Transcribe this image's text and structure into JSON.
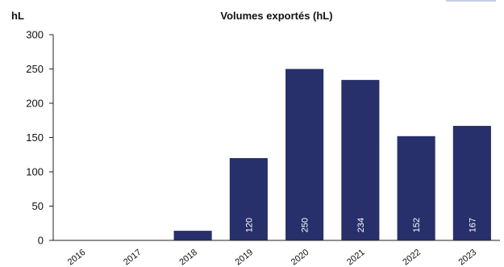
{
  "chart_data": {
    "type": "bar",
    "title": "Volumes exportés (hL)",
    "ylabel": "hL",
    "xlabel": "",
    "categories": [
      "2016",
      "2017",
      "2018",
      "2019",
      "2020",
      "2021",
      "2022",
      "2023"
    ],
    "values": [
      0,
      0,
      14,
      120,
      250,
      234,
      152,
      167
    ],
    "data_labels": [
      "",
      "",
      "",
      "120",
      "250",
      "234",
      "152",
      "167"
    ],
    "ylim": [
      0,
      300
    ],
    "yticks": [
      "0",
      "50",
      "100",
      "150",
      "200",
      "250",
      "300"
    ],
    "bar_color": "#27306a",
    "grid": false,
    "legend": "none"
  }
}
